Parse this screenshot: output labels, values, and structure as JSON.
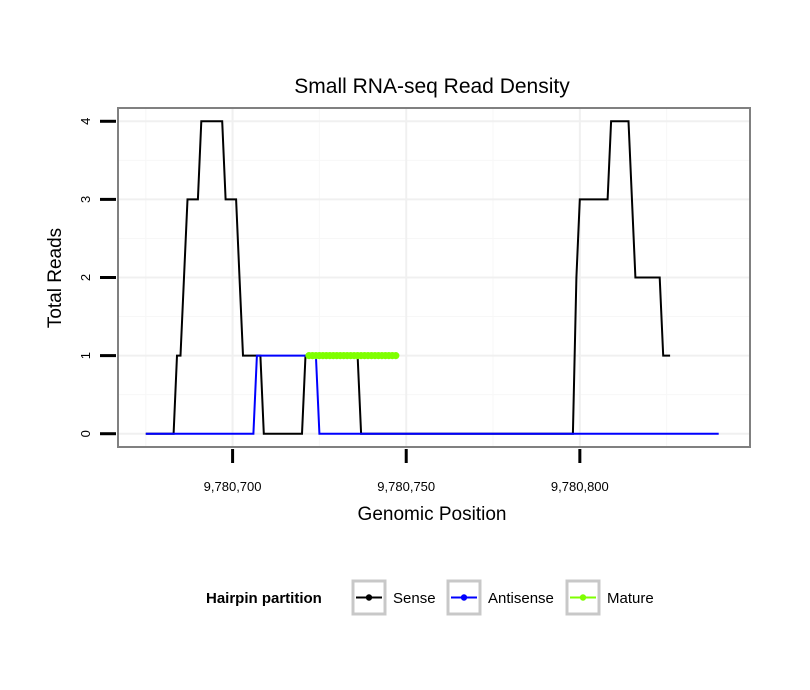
{
  "chart_data": {
    "type": "line",
    "title": "Small RNA-seq Read Density",
    "xlabel": "Genomic Position",
    "ylabel": "Total Reads",
    "xlim": [
      9780667,
      9780849
    ],
    "ylim": [
      -0.17,
      4.17
    ],
    "x_ticks": [
      9780700,
      9780750,
      9780800
    ],
    "x_tick_labels": [
      "9,780,700",
      "9,780,750",
      "9,780,800"
    ],
    "y_ticks": [
      0,
      1,
      2,
      3,
      4
    ],
    "y_tick_labels": [
      "0",
      "1",
      "2",
      "3",
      "4"
    ],
    "legend": {
      "title": "Hairpin partition",
      "position": "bottom",
      "entries": [
        "Sense",
        "Antisense",
        "Mature"
      ]
    },
    "series": [
      {
        "name": "Sense",
        "color": "#000000",
        "points": [
          [
            9780675,
            0
          ],
          [
            9780683,
            0
          ],
          [
            9780684,
            1
          ],
          [
            9780685,
            1
          ],
          [
            9780686,
            2
          ],
          [
            9780687,
            3
          ],
          [
            9780690,
            3
          ],
          [
            9780691,
            4
          ],
          [
            9780697,
            4
          ],
          [
            9780698,
            3
          ],
          [
            9780701,
            3
          ],
          [
            9780702,
            2
          ],
          [
            9780703,
            1
          ],
          [
            9780708,
            1
          ],
          [
            9780709,
            0
          ],
          [
            9780720,
            0
          ],
          [
            9780721,
            1
          ],
          [
            9780736,
            1
          ],
          [
            9780737,
            0
          ],
          [
            9780798,
            0
          ],
          [
            9780799,
            2
          ],
          [
            9780800,
            3
          ],
          [
            9780808,
            3
          ],
          [
            9780809,
            4
          ],
          [
            9780814,
            4
          ],
          [
            9780816,
            2
          ],
          [
            9780823,
            2
          ],
          [
            9780824,
            1
          ],
          [
            9780826,
            1
          ]
        ]
      },
      {
        "name": "Antisense",
        "color": "#0000ff",
        "points": [
          [
            9780675,
            0
          ],
          [
            9780706,
            0
          ],
          [
            9780707,
            1
          ],
          [
            9780724,
            1
          ],
          [
            9780725,
            0
          ],
          [
            9780840,
            0
          ]
        ]
      },
      {
        "name": "Mature",
        "color": "#7fff00",
        "points": [
          [
            9780722,
            1
          ],
          [
            9780747,
            1
          ]
        ]
      }
    ]
  }
}
